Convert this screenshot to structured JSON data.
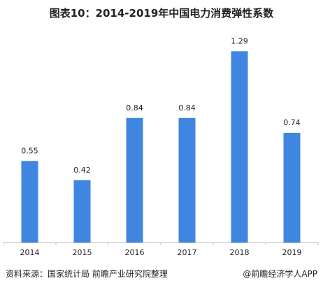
{
  "title": "图表10：2014-2019年中国电力消费弹性系数",
  "source": "资料来源：国家统计局 前瞻产业研究院整理",
  "credit": "@前瞻经济学人APP",
  "colors": {
    "bar": "#3f86e0",
    "axis": "#bfbfbf"
  },
  "chart_data": {
    "type": "bar",
    "categories": [
      "2014",
      "2015",
      "2016",
      "2017",
      "2018",
      "2019"
    ],
    "values": [
      0.55,
      0.42,
      0.84,
      0.84,
      1.29,
      0.74
    ],
    "value_labels": [
      "0.55",
      "0.42",
      "0.84",
      "0.84",
      "1.29",
      "0.74"
    ],
    "title": "图表10：2014-2019年中国电力消费弹性系数",
    "xlabel": "",
    "ylabel": "",
    "ylim": [
      0,
      1.4
    ],
    "grid": false
  }
}
